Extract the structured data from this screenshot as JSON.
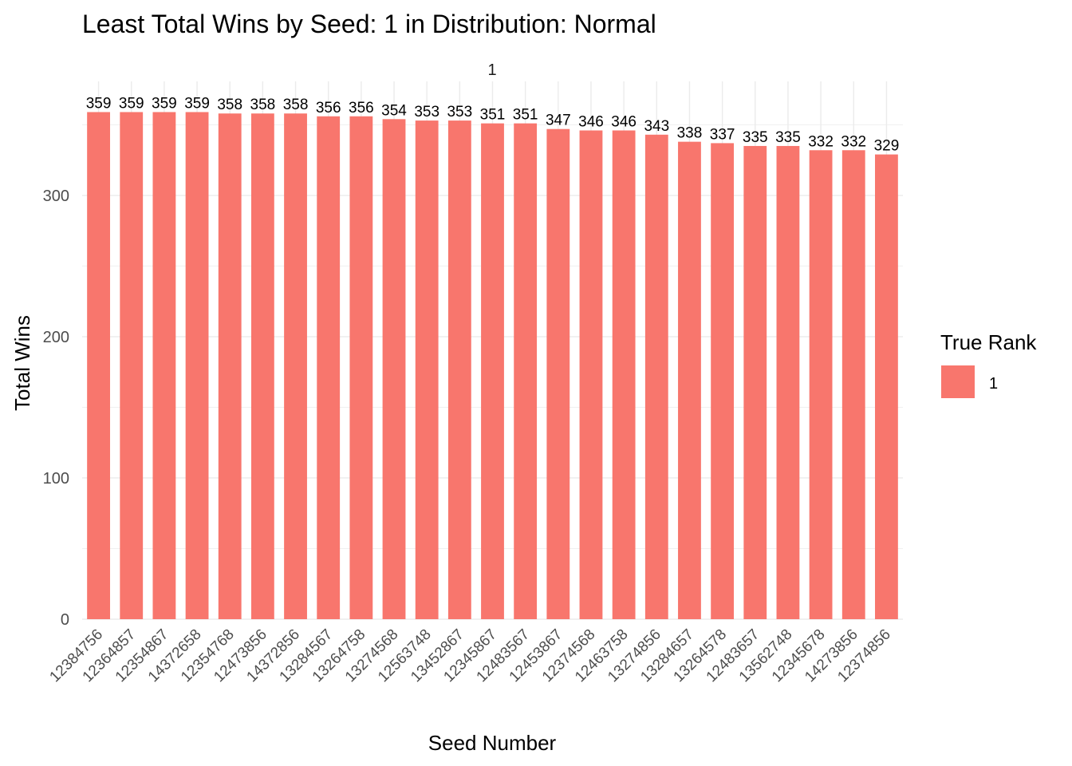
{
  "chart_data": {
    "type": "bar",
    "title": "Least Total Wins by Seed: 1 in Distribution: Normal",
    "facet_label": "1",
    "xlabel": "Seed Number",
    "ylabel": "Total Wins",
    "ylim": [
      0,
      370
    ],
    "yticks": [
      0,
      100,
      200,
      300
    ],
    "ytick_labels": [
      "0",
      "100",
      "200",
      "300"
    ],
    "grid": true,
    "categories": [
      "12384756",
      "12364857",
      "12354867",
      "14372658",
      "12354768",
      "12473856",
      "14372856",
      "13284567",
      "13264758",
      "13274568",
      "12563748",
      "13452867",
      "12345867",
      "12483567",
      "12453867",
      "12374568",
      "12463758",
      "13274856",
      "13284657",
      "13264578",
      "12483657",
      "13562748",
      "12345678",
      "14273856",
      "12374856"
    ],
    "values": [
      359,
      359,
      359,
      359,
      358,
      358,
      358,
      356,
      356,
      354,
      353,
      353,
      351,
      351,
      347,
      346,
      346,
      343,
      338,
      337,
      335,
      335,
      332,
      332,
      329
    ],
    "data_labels": [
      "359",
      "359",
      "359",
      "359",
      "358",
      "358",
      "358",
      "356",
      "356",
      "354",
      "353",
      "353",
      "351",
      "351",
      "347",
      "346",
      "346",
      "343",
      "338",
      "337",
      "335",
      "335",
      "332",
      "332",
      "329"
    ],
    "bar_color": "#F8766D",
    "legend": {
      "title": "True Rank",
      "placement": "right",
      "entries": [
        {
          "label": "1",
          "color": "#F8766D"
        }
      ]
    }
  }
}
